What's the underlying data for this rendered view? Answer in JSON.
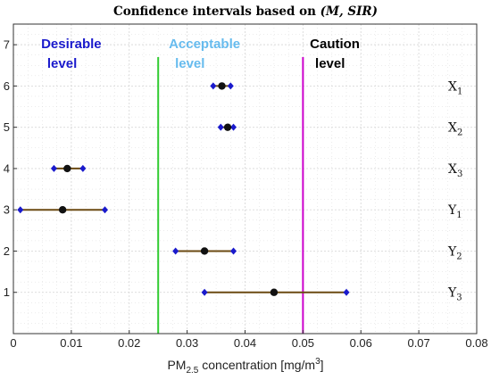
{
  "chart_data": {
    "type": "scatter",
    "title_prefix": "Confidence intervals based on ",
    "title_math": "(M, SIR)",
    "xlabel_prefix": "PM",
    "xlabel_sub": "2.5",
    "xlabel_suffix": " concentration [mg/m",
    "xlabel_sup": "3",
    "xlabel_end": "]",
    "xlim": [
      0,
      0.08
    ],
    "ylim": [
      0,
      7.5
    ],
    "xticks": [
      "0",
      "0.01",
      "0.02",
      "0.03",
      "0.04",
      "0.05",
      "0.06",
      "0.07",
      "0.08"
    ],
    "yticks": [
      "1",
      "2",
      "3",
      "4",
      "5",
      "6",
      "7"
    ],
    "grid": true,
    "thresholds": [
      {
        "value": 0.025,
        "color": "#33cc33"
      },
      {
        "value": 0.05,
        "color": "#cc00cc"
      }
    ],
    "zones": [
      {
        "line1": "Desirable",
        "line2": "level",
        "color": "#1a1acc"
      },
      {
        "line1": "Acceptable",
        "line2": "level",
        "color": "#66bbee"
      },
      {
        "line1": "Caution",
        "line2": "level",
        "color": "#000000"
      }
    ],
    "series": [
      {
        "label": "X",
        "sub": "1",
        "y": 6,
        "low": 0.0345,
        "median": 0.036,
        "high": 0.0375
      },
      {
        "label": "X",
        "sub": "2",
        "y": 5,
        "low": 0.0358,
        "median": 0.037,
        "high": 0.038
      },
      {
        "label": "X",
        "sub": "3",
        "y": 4,
        "low": 0.007,
        "median": 0.0093,
        "high": 0.012
      },
      {
        "label": "Y",
        "sub": "1",
        "y": 3,
        "low": 0.0012,
        "median": 0.0085,
        "high": 0.0158
      },
      {
        "label": "Y",
        "sub": "2",
        "y": 2,
        "low": 0.028,
        "median": 0.033,
        "high": 0.038
      },
      {
        "label": "Y",
        "sub": "3",
        "y": 1,
        "low": 0.033,
        "median": 0.045,
        "high": 0.0575
      }
    ],
    "colors": {
      "interval": "#6b4a12",
      "median": "#111111",
      "endpoint": "#1a1acc",
      "grid": "#d9d9d9"
    }
  }
}
